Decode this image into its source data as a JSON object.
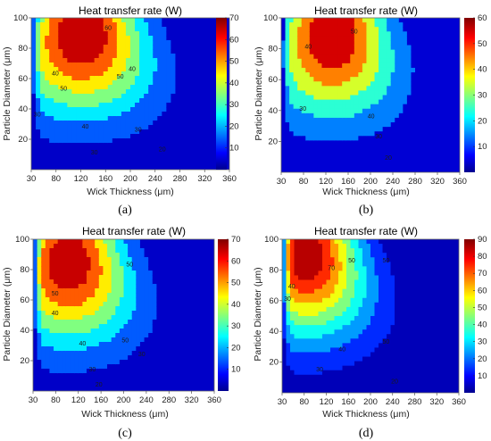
{
  "figure": {
    "captions": [
      "(a)",
      "(b)",
      "(c)",
      "(d)"
    ],
    "colormap": "jet"
  },
  "chart_data": [
    {
      "panel": "(a)",
      "type": "heatmap",
      "title": "Heat transfer rate (W)",
      "xlabel": "Wick Thickness (μm)",
      "ylabel": "Particle Diameter (μm)",
      "xlim": [
        30,
        360
      ],
      "ylim": [
        0,
        100
      ],
      "x_ticks": [
        30,
        80,
        120,
        160,
        200,
        240,
        280,
        320,
        360
      ],
      "y_ticks": [
        20,
        40,
        60,
        80,
        100
      ],
      "colorbar": {
        "range": [
          0,
          70
        ],
        "ticks": [
          10,
          20,
          30,
          40,
          50,
          60,
          70
        ]
      },
      "peak": {
        "x": 115,
        "y": 90,
        "value": 70
      },
      "contour_levels": [
        20,
        30,
        40,
        50,
        60
      ],
      "contour_labels": [
        {
          "text": "60",
          "x": 158,
          "y": 92
        },
        {
          "text": "50",
          "x": 84,
          "y": 52
        },
        {
          "text": "50",
          "x": 178,
          "y": 60
        },
        {
          "text": "40",
          "x": 70,
          "y": 62
        },
        {
          "text": "40",
          "x": 198,
          "y": 65
        },
        {
          "text": "30",
          "x": 40,
          "y": 35
        },
        {
          "text": "30",
          "x": 208,
          "y": 25
        },
        {
          "text": "40",
          "x": 120,
          "y": 27
        },
        {
          "text": "30",
          "x": 135,
          "y": 10
        },
        {
          "text": "20",
          "x": 248,
          "y": 12
        }
      ]
    },
    {
      "panel": "(b)",
      "type": "heatmap",
      "title": "Heat transfer rate (W)",
      "xlabel": "Wick Thickness (μm)",
      "ylabel": "Particle Diameter (μm)",
      "xlim": [
        30,
        360
      ],
      "ylim": [
        0,
        100
      ],
      "x_ticks": [
        30,
        80,
        120,
        160,
        200,
        240,
        280,
        320,
        360
      ],
      "y_ticks": [
        20,
        40,
        60,
        80,
        100
      ],
      "colorbar": {
        "range": [
          0,
          60
        ],
        "ticks": [
          10,
          20,
          30,
          40,
          50,
          60
        ]
      },
      "peak": {
        "x": 125,
        "y": 90,
        "value": 60
      },
      "contour_levels": [
        20,
        30,
        40,
        50
      ],
      "contour_labels": [
        {
          "text": "50",
          "x": 165,
          "y": 90
        },
        {
          "text": "40",
          "x": 80,
          "y": 80
        },
        {
          "text": "40",
          "x": 196,
          "y": 35
        },
        {
          "text": "30",
          "x": 210,
          "y": 22
        },
        {
          "text": "30",
          "x": 70,
          "y": 40
        },
        {
          "text": "20",
          "x": 228,
          "y": 8
        }
      ]
    },
    {
      "panel": "(c)",
      "type": "heatmap",
      "title": "Heat transfer rate (W)",
      "xlabel": "Wick Thickness (μm)",
      "ylabel": "Particle Diameter (μm)",
      "xlim": [
        30,
        360
      ],
      "ylim": [
        0,
        100
      ],
      "x_ticks": [
        30,
        80,
        120,
        160,
        200,
        240,
        280,
        320,
        360
      ],
      "y_ticks": [
        20,
        40,
        60,
        80,
        100
      ],
      "colorbar": {
        "range": [
          0,
          70
        ],
        "ticks": [
          10,
          20,
          30,
          40,
          50,
          60,
          70
        ]
      },
      "peak": {
        "x": 95,
        "y": 85,
        "value": 68
      },
      "contour_levels": [
        20,
        30,
        40,
        50,
        60
      ],
      "contour_labels": [
        {
          "text": "50",
          "x": 206,
          "y": 82
        },
        {
          "text": "50",
          "x": 198,
          "y": 32
        },
        {
          "text": "40",
          "x": 70,
          "y": 50
        },
        {
          "text": "40",
          "x": 120,
          "y": 30
        },
        {
          "text": "30",
          "x": 138,
          "y": 13
        },
        {
          "text": "30",
          "x": 228,
          "y": 23
        },
        {
          "text": "20",
          "x": 150,
          "y": 3
        },
        {
          "text": "50",
          "x": 70,
          "y": 63
        }
      ]
    },
    {
      "panel": "(d)",
      "type": "heatmap",
      "title": "Heat transfer rate (W)",
      "xlabel": "Wick Thickness (μm)",
      "ylabel": "Particle Diameter (μm)",
      "xlim": [
        30,
        360
      ],
      "ylim": [
        0,
        100
      ],
      "x_ticks": [
        30,
        80,
        120,
        160,
        200,
        240,
        280,
        320,
        360
      ],
      "y_ticks": [
        20,
        40,
        60,
        80,
        100
      ],
      "colorbar": {
        "range": [
          0,
          90
        ],
        "ticks": [
          10,
          20,
          30,
          40,
          50,
          60,
          70,
          80,
          90
        ]
      },
      "peak": {
        "x": 75,
        "y": 90,
        "value": 88
      },
      "contour_levels": [
        20,
        30,
        40,
        50,
        60,
        70
      ],
      "contour_labels": [
        {
          "text": "70",
          "x": 122,
          "y": 80
        },
        {
          "text": "50",
          "x": 160,
          "y": 85
        },
        {
          "text": "50",
          "x": 224,
          "y": 85
        },
        {
          "text": "50",
          "x": 224,
          "y": 32
        },
        {
          "text": "40",
          "x": 48,
          "y": 68
        },
        {
          "text": "40",
          "x": 142,
          "y": 27
        },
        {
          "text": "30",
          "x": 40,
          "y": 60
        },
        {
          "text": "30",
          "x": 100,
          "y": 14
        },
        {
          "text": "20",
          "x": 240,
          "y": 6
        }
      ]
    }
  ]
}
